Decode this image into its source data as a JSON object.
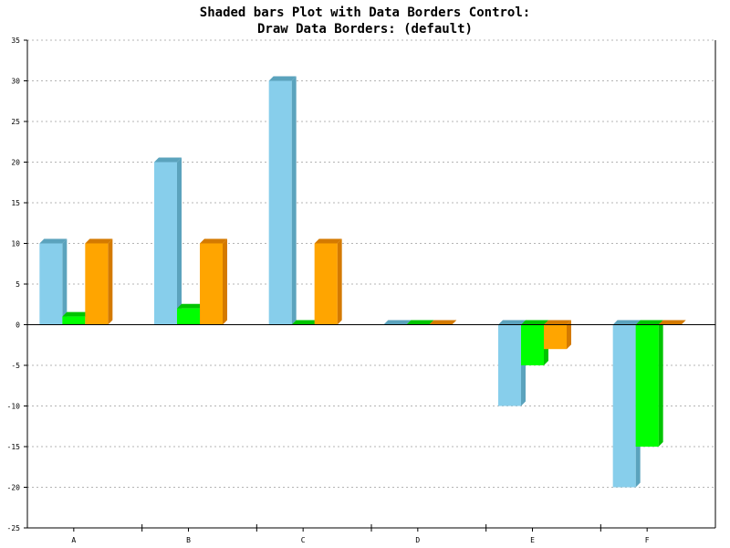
{
  "chart_title_line1": "Shaded bars Plot with Data Borders Control:",
  "chart_title_line2": "Draw Data Borders: (default)",
  "chart_data": {
    "type": "bar",
    "title": "Shaded bars Plot with Data Borders Control: Draw Data Borders: (default)",
    "xlabel": "",
    "ylabel": "",
    "categories": [
      "A",
      "B",
      "C",
      "D",
      "E",
      "F"
    ],
    "series": [
      {
        "color": "#87CEEB",
        "shade": "#5BA3BD",
        "values": [
          10,
          20,
          30,
          0,
          -10,
          -20
        ]
      },
      {
        "color": "#00FF00",
        "shade": "#00C400",
        "values": [
          1,
          2,
          0,
          0,
          -5,
          -15
        ]
      },
      {
        "color": "#FFA500",
        "shade": "#D47A00",
        "values": [
          10,
          10,
          10,
          0,
          -3,
          0
        ]
      }
    ],
    "ylim": [
      -25,
      35
    ],
    "yticks": [
      35,
      30,
      25,
      20,
      15,
      10,
      5,
      0,
      -5,
      -10,
      -15,
      -20,
      -25
    ],
    "grid": "horizontal dotted",
    "legend": "none",
    "shading": "3d"
  }
}
